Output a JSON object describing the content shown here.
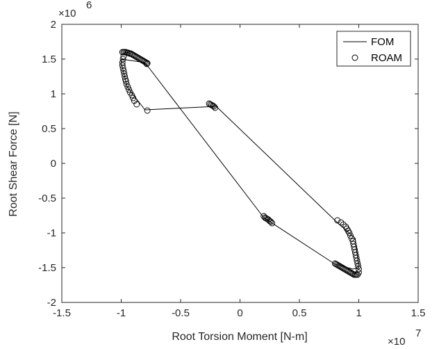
{
  "chart_data": {
    "type": "line",
    "title": "",
    "xlabel": "Root Torsion Moment [N-m]",
    "ylabel": "Root Shear Force [N]",
    "x_multiplier": {
      "base": "×10",
      "exp": "7"
    },
    "y_multiplier": {
      "base": "×10",
      "exp": "6"
    },
    "xlim": [
      -1.5,
      1.5
    ],
    "ylim": [
      -2,
      2
    ],
    "xticks": [
      "-1.5",
      "-1",
      "-0.5",
      "0",
      "0.5",
      "1",
      "1.5"
    ],
    "yticks": [
      "-2",
      "-1.5",
      "-1",
      "-0.5",
      "0",
      "0.5",
      "1",
      "1.5",
      "2"
    ],
    "grid": false,
    "legend_position": "top-right",
    "series": [
      {
        "name": "FOM",
        "style": "line",
        "color": "#000000",
        "x": [
          -1.0,
          -0.8,
          0.2,
          0.8,
          0.95,
          1.0,
          0.97,
          0.8,
          -0.2,
          -0.8,
          -0.95,
          -1.0,
          -1.0
        ],
        "y": [
          1.5,
          1.45,
          -0.78,
          -1.45,
          -1.52,
          -1.5,
          -1.08,
          -0.82,
          0.82,
          0.77,
          1.1,
          1.45,
          1.5
        ]
      },
      {
        "name": "ROAM",
        "style": "markers",
        "marker": "circle",
        "color": "#000000",
        "x": [
          -0.99,
          -0.98,
          -0.97,
          -0.96,
          -0.95,
          -0.94,
          -0.93,
          -0.92,
          -0.91,
          -0.9,
          -0.89,
          -0.88,
          -0.87,
          -0.86,
          -0.85,
          -0.84,
          -0.83,
          -0.82,
          -0.81,
          -0.8,
          -0.79,
          -0.78,
          -0.785,
          -0.98,
          -0.985,
          -0.99,
          -0.99,
          -0.985,
          -0.98,
          -0.975,
          -0.97,
          -0.965,
          -0.96,
          -0.955,
          -0.945,
          -0.935,
          -0.925,
          -0.91,
          -0.9,
          -0.89,
          -0.87,
          -0.78,
          -0.26,
          -0.25,
          -0.24,
          -0.23,
          -0.22,
          -0.21,
          0.2,
          0.21,
          0.22,
          0.23,
          0.24,
          0.25,
          0.26,
          0.27,
          0.8,
          0.81,
          0.82,
          0.83,
          0.84,
          0.85,
          0.86,
          0.87,
          0.88,
          0.89,
          0.9,
          0.91,
          0.92,
          0.93,
          0.94,
          0.95,
          0.96,
          0.97,
          0.98,
          0.99,
          1.0,
          1.0,
          0.995,
          0.99,
          0.985,
          0.98,
          0.975,
          0.97,
          0.965,
          0.96,
          0.955,
          0.95,
          0.94,
          0.93,
          0.92,
          0.91,
          0.9,
          0.89,
          0.87,
          0.85,
          0.82
        ],
        "y": [
          1.6,
          1.6,
          1.6,
          1.6,
          1.59,
          1.59,
          1.58,
          1.58,
          1.57,
          1.56,
          1.55,
          1.54,
          1.53,
          1.52,
          1.51,
          1.5,
          1.49,
          1.48,
          1.47,
          1.46,
          1.45,
          1.44,
          1.43,
          1.54,
          1.5,
          1.45,
          1.41,
          1.37,
          1.33,
          1.29,
          1.25,
          1.21,
          1.18,
          1.14,
          1.1,
          1.06,
          1.02,
          0.98,
          0.94,
          0.9,
          0.85,
          0.76,
          0.86,
          0.85,
          0.84,
          0.83,
          0.82,
          0.8,
          -0.76,
          -0.78,
          -0.79,
          -0.8,
          -0.81,
          -0.83,
          -0.84,
          -0.86,
          -1.44,
          -1.45,
          -1.46,
          -1.47,
          -1.48,
          -1.49,
          -1.5,
          -1.51,
          -1.52,
          -1.53,
          -1.54,
          -1.55,
          -1.56,
          -1.57,
          -1.58,
          -1.59,
          -1.6,
          -1.6,
          -1.6,
          -1.6,
          -1.57,
          -1.52,
          -1.48,
          -1.44,
          -1.4,
          -1.36,
          -1.32,
          -1.28,
          -1.24,
          -1.2,
          -1.16,
          -1.12,
          -1.08,
          -1.04,
          -1.0,
          -0.97,
          -0.94,
          -0.91,
          -0.88,
          -0.85,
          -0.82
        ]
      }
    ]
  }
}
